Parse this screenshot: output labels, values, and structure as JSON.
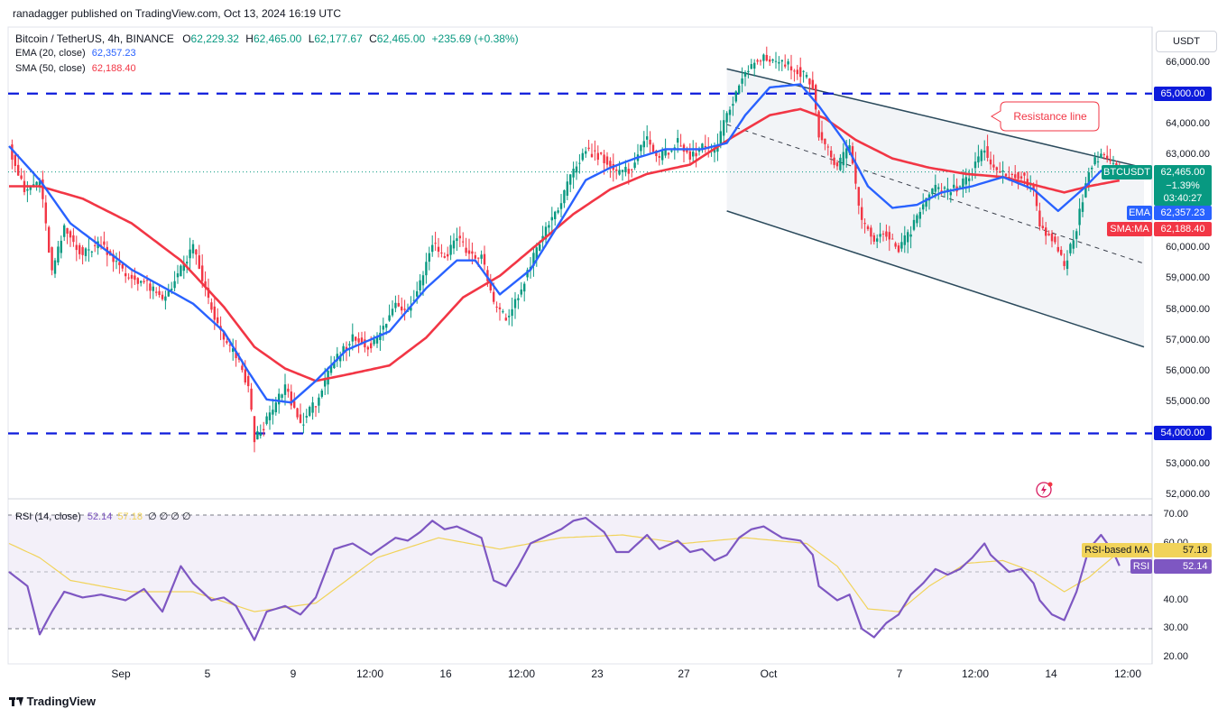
{
  "header": {
    "publisher": "ranadagger published on TradingView.com, Oct 13, 2024 16:19 UTC"
  },
  "legend": {
    "title": "Bitcoin / TetherUS, 4h, BINANCE",
    "o_label": "O",
    "o": "62,229.32",
    "h_label": "H",
    "h": "62,465.00",
    "l_label": "L",
    "l": "62,177.67",
    "c_label": "C",
    "c": "62,465.00",
    "change": "+235.69 (+0.38%)",
    "ema_label": "EMA (20, close)",
    "ema_value": "62,357.23",
    "sma_label": "SMA (50, close)",
    "sma_value": "62,188.40",
    "rsi_label": "RSI (14, close)",
    "rsi_value": "52.14",
    "rsi_ma_value": "57.18",
    "rsi_extra": "∅ ∅ ∅ ∅"
  },
  "price_axis": {
    "currency": "USDT",
    "ticks": [
      "66,000.00",
      "65,000.00",
      "64,000.00",
      "63,000.00",
      "62,000.00",
      "61,000.00",
      "60,000.00",
      "59,000.00",
      "58,000.00",
      "57,000.00",
      "56,000.00",
      "55,000.00",
      "54,000.00",
      "53,000.00",
      "52,000.00"
    ],
    "last_badge": {
      "symbol": "BTCUSDT",
      "price": "62,465.00",
      "change": "−1.39%",
      "countdown": "03:40:27"
    },
    "ema_badge": {
      "label": "EMA",
      "value": "62,357.23"
    },
    "sma_badge": {
      "label": "SMA:MA",
      "value": "62,188.40"
    },
    "level_badges": [
      "65,000.00",
      "54,000.00"
    ]
  },
  "rsi_axis": {
    "ticks": [
      "70.00",
      "60.00",
      "50.00",
      "40.00",
      "30.00",
      "20.00"
    ],
    "ma_badge": {
      "label": "RSI-based MA",
      "value": "57.18"
    },
    "rsi_badge": {
      "label": "RSI",
      "value": "52.14"
    }
  },
  "time_axis": [
    "Sep",
    "5",
    "9",
    "12:00",
    "16",
    "12:00",
    "23",
    "27",
    "Oct",
    "7",
    "12:00",
    "14",
    "12:00"
  ],
  "annotation": "Resistance line",
  "footer": {
    "logo": "TradingView"
  },
  "colors": {
    "up": "#089981",
    "down": "#f23645",
    "ema": "#2962ff",
    "sma": "#f23645",
    "level_line": "#0d1bdb",
    "channel": "#2b4a5c",
    "rsi": "#7e57c2",
    "rsi_ma": "#f1d35a"
  },
  "chart_data": {
    "type": "candlestick",
    "symbol": "BTCUSDT",
    "interval": "4h",
    "levels": [
      65000,
      54000
    ],
    "ylim": [
      51800,
      66700
    ],
    "ohlc_path": [
      [
        0,
        63300
      ],
      [
        5,
        61800
      ],
      [
        10,
        62200
      ],
      [
        14,
        59200
      ],
      [
        18,
        60600
      ],
      [
        24,
        59800
      ],
      [
        30,
        60200
      ],
      [
        38,
        59100
      ],
      [
        44,
        58900
      ],
      [
        50,
        58300
      ],
      [
        56,
        59300
      ],
      [
        60,
        60000
      ],
      [
        66,
        58000
      ],
      [
        70,
        57000
      ],
      [
        74,
        56500
      ],
      [
        78,
        55500
      ],
      [
        80,
        53800
      ],
      [
        84,
        54400
      ],
      [
        90,
        55500
      ],
      [
        95,
        54300
      ],
      [
        100,
        55000
      ],
      [
        106,
        56300
      ],
      [
        112,
        57100
      ],
      [
        118,
        56800
      ],
      [
        122,
        57400
      ],
      [
        126,
        58200
      ],
      [
        130,
        58000
      ],
      [
        134,
        58900
      ],
      [
        138,
        60200
      ],
      [
        142,
        59700
      ],
      [
        146,
        60400
      ],
      [
        150,
        59800
      ],
      [
        154,
        59700
      ],
      [
        158,
        58200
      ],
      [
        162,
        57700
      ],
      [
        166,
        58400
      ],
      [
        170,
        59500
      ],
      [
        176,
        60800
      ],
      [
        180,
        61500
      ],
      [
        184,
        62500
      ],
      [
        188,
        63200
      ],
      [
        194,
        62900
      ],
      [
        198,
        62400
      ],
      [
        202,
        62500
      ],
      [
        208,
        63600
      ],
      [
        212,
        62900
      ],
      [
        218,
        63400
      ],
      [
        222,
        62900
      ],
      [
        226,
        63300
      ],
      [
        230,
        63100
      ],
      [
        234,
        64300
      ],
      [
        238,
        65300
      ],
      [
        242,
        65900
      ],
      [
        246,
        66200
      ],
      [
        252,
        66000
      ],
      [
        258,
        65700
      ],
      [
        262,
        65300
      ],
      [
        264,
        63700
      ],
      [
        270,
        62600
      ],
      [
        274,
        63300
      ],
      [
        278,
        60800
      ],
      [
        282,
        60300
      ],
      [
        286,
        60500
      ],
      [
        290,
        59900
      ],
      [
        294,
        60600
      ],
      [
        298,
        61400
      ],
      [
        302,
        61900
      ],
      [
        306,
        61800
      ],
      [
        310,
        62000
      ],
      [
        314,
        62500
      ],
      [
        318,
        63200
      ],
      [
        320,
        62700
      ],
      [
        326,
        62300
      ],
      [
        330,
        62400
      ],
      [
        334,
        61800
      ],
      [
        336,
        60800
      ],
      [
        340,
        60300
      ],
      [
        344,
        59400
      ],
      [
        348,
        60700
      ],
      [
        352,
        62500
      ],
      [
        356,
        63100
      ],
      [
        360,
        62700
      ],
      [
        362,
        62465
      ]
    ],
    "ema20_path": [
      [
        0,
        63300
      ],
      [
        10,
        62200
      ],
      [
        20,
        60800
      ],
      [
        40,
        59300
      ],
      [
        60,
        58200
      ],
      [
        70,
        57300
      ],
      [
        78,
        56000
      ],
      [
        84,
        55100
      ],
      [
        92,
        55000
      ],
      [
        100,
        55700
      ],
      [
        110,
        56700
      ],
      [
        124,
        57300
      ],
      [
        136,
        58700
      ],
      [
        146,
        59600
      ],
      [
        152,
        59600
      ],
      [
        160,
        58500
      ],
      [
        170,
        59300
      ],
      [
        180,
        60900
      ],
      [
        188,
        62200
      ],
      [
        196,
        62600
      ],
      [
        204,
        62900
      ],
      [
        214,
        63200
      ],
      [
        226,
        63200
      ],
      [
        234,
        63400
      ],
      [
        240,
        64300
      ],
      [
        248,
        65200
      ],
      [
        258,
        65300
      ],
      [
        264,
        64600
      ],
      [
        272,
        63500
      ],
      [
        280,
        62000
      ],
      [
        288,
        61300
      ],
      [
        296,
        61400
      ],
      [
        304,
        61800
      ],
      [
        314,
        62000
      ],
      [
        324,
        62300
      ],
      [
        334,
        61900
      ],
      [
        342,
        61200
      ],
      [
        350,
        61900
      ],
      [
        356,
        62500
      ],
      [
        362,
        62357
      ]
    ],
    "sma50_path": [
      [
        0,
        62000
      ],
      [
        10,
        62000
      ],
      [
        24,
        61600
      ],
      [
        40,
        60800
      ],
      [
        56,
        59600
      ],
      [
        70,
        58100
      ],
      [
        80,
        56800
      ],
      [
        90,
        56100
      ],
      [
        100,
        55700
      ],
      [
        110,
        55900
      ],
      [
        124,
        56200
      ],
      [
        136,
        57100
      ],
      [
        148,
        58400
      ],
      [
        160,
        59100
      ],
      [
        172,
        60100
      ],
      [
        184,
        61100
      ],
      [
        196,
        61900
      ],
      [
        208,
        62400
      ],
      [
        222,
        62700
      ],
      [
        236,
        63600
      ],
      [
        248,
        64300
      ],
      [
        258,
        64500
      ],
      [
        266,
        64200
      ],
      [
        276,
        63500
      ],
      [
        288,
        62900
      ],
      [
        300,
        62600
      ],
      [
        312,
        62400
      ],
      [
        324,
        62300
      ],
      [
        336,
        62000
      ],
      [
        344,
        61800
      ],
      [
        352,
        62000
      ],
      [
        362,
        62188
      ]
    ],
    "channel": {
      "upper": [
        [
          234,
          65800
        ],
        [
          370,
          62600
        ]
      ],
      "lower": [
        [
          234,
          61200
        ],
        [
          370,
          56800
        ]
      ],
      "mid": [
        [
          234,
          64000
        ],
        [
          370,
          59500
        ]
      ]
    },
    "rsi": {
      "ylim": [
        18,
        72
      ],
      "bands": [
        70,
        50,
        30
      ],
      "values": [
        [
          0,
          50
        ],
        [
          6,
          45
        ],
        [
          10,
          28
        ],
        [
          14,
          36
        ],
        [
          18,
          43
        ],
        [
          24,
          41
        ],
        [
          30,
          42
        ],
        [
          38,
          40
        ],
        [
          44,
          44
        ],
        [
          50,
          36
        ],
        [
          56,
          52
        ],
        [
          60,
          46
        ],
        [
          66,
          40
        ],
        [
          70,
          41
        ],
        [
          74,
          38
        ],
        [
          78,
          30
        ],
        [
          80,
          26
        ],
        [
          84,
          36
        ],
        [
          90,
          38
        ],
        [
          95,
          35
        ],
        [
          100,
          41
        ],
        [
          106,
          58
        ],
        [
          112,
          60
        ],
        [
          118,
          56
        ],
        [
          122,
          59
        ],
        [
          126,
          62
        ],
        [
          130,
          61
        ],
        [
          134,
          64
        ],
        [
          138,
          68
        ],
        [
          142,
          65
        ],
        [
          146,
          66
        ],
        [
          150,
          64
        ],
        [
          154,
          62
        ],
        [
          158,
          47
        ],
        [
          162,
          45
        ],
        [
          166,
          52
        ],
        [
          170,
          60
        ],
        [
          176,
          63
        ],
        [
          180,
          65
        ],
        [
          184,
          68
        ],
        [
          188,
          69
        ],
        [
          194,
          64
        ],
        [
          198,
          57
        ],
        [
          202,
          57
        ],
        [
          208,
          63
        ],
        [
          212,
          58
        ],
        [
          218,
          61
        ],
        [
          222,
          57
        ],
        [
          226,
          58
        ],
        [
          230,
          54
        ],
        [
          234,
          56
        ],
        [
          238,
          62
        ],
        [
          242,
          65
        ],
        [
          246,
          66
        ],
        [
          252,
          62
        ],
        [
          258,
          61
        ],
        [
          262,
          56
        ],
        [
          264,
          45
        ],
        [
          270,
          40
        ],
        [
          274,
          42
        ],
        [
          278,
          30
        ],
        [
          282,
          27
        ],
        [
          286,
          32
        ],
        [
          290,
          35
        ],
        [
          294,
          42
        ],
        [
          298,
          46
        ],
        [
          302,
          51
        ],
        [
          306,
          49
        ],
        [
          310,
          51
        ],
        [
          314,
          55
        ],
        [
          318,
          60
        ],
        [
          320,
          56
        ],
        [
          326,
          50
        ],
        [
          330,
          51
        ],
        [
          334,
          46
        ],
        [
          336,
          40
        ],
        [
          340,
          35
        ],
        [
          344,
          33
        ],
        [
          348,
          43
        ],
        [
          352,
          58
        ],
        [
          356,
          63
        ],
        [
          360,
          57
        ],
        [
          362,
          52.14
        ]
      ],
      "ma_values": [
        [
          0,
          60
        ],
        [
          10,
          55
        ],
        [
          20,
          47
        ],
        [
          40,
          43
        ],
        [
          60,
          43
        ],
        [
          80,
          36
        ],
        [
          100,
          39
        ],
        [
          120,
          55
        ],
        [
          140,
          62
        ],
        [
          160,
          58
        ],
        [
          180,
          62
        ],
        [
          200,
          63
        ],
        [
          220,
          60
        ],
        [
          240,
          62
        ],
        [
          260,
          60
        ],
        [
          270,
          52
        ],
        [
          280,
          37
        ],
        [
          290,
          36
        ],
        [
          300,
          45
        ],
        [
          312,
          53
        ],
        [
          324,
          54
        ],
        [
          334,
          50
        ],
        [
          344,
          43
        ],
        [
          352,
          48
        ],
        [
          362,
          57.18
        ]
      ]
    }
  }
}
